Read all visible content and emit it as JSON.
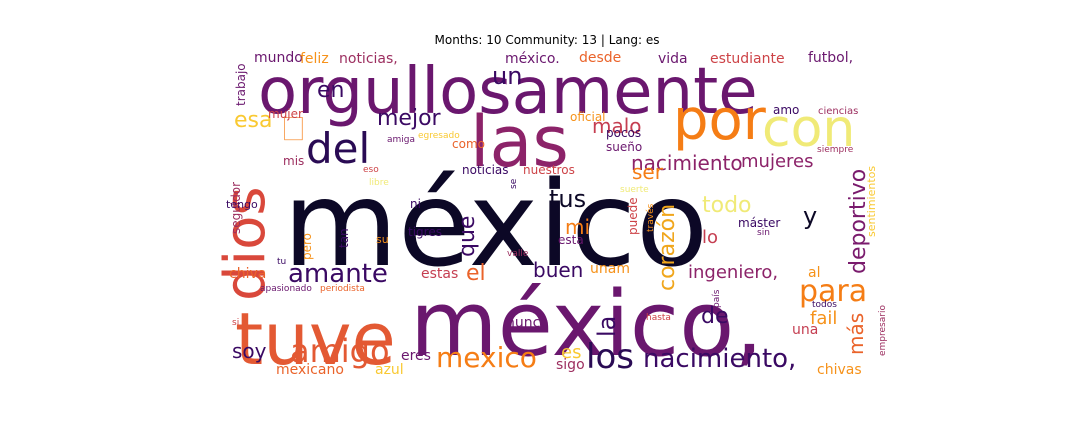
{
  "title": "Months: 10 Community: 13 | Lang: es",
  "colormap": [
    "#0c0826",
    "#3a0963",
    "#6a176e",
    "#9c2e5f",
    "#cd4347",
    "#ea632a",
    "#f6921a",
    "#f9c932",
    "#f0ea77"
  ],
  "words": [
    {
      "text": "méxico",
      "color": "#0c0826"
    },
    {
      "text": "orgullosamente",
      "color": "#6a176e"
    },
    {
      "text": "méxico,",
      "color": "#6a176e"
    },
    {
      "text": "tuve",
      "color": "#e35933"
    },
    {
      "text": "las",
      "color": "#8c2369"
    },
    {
      "text": "por",
      "color": "#f57d15"
    },
    {
      "text": "con",
      "color": "#f0ea77"
    },
    {
      "text": "dios",
      "color": "#d9483b"
    },
    {
      "text": "del",
      "color": "#2a0b54"
    },
    {
      "text": "amigo",
      "color": "#e35933"
    },
    {
      "text": "los",
      "color": "#2a0b54"
    },
    {
      "text": "nacimiento,",
      "color": "#3a0963"
    },
    {
      "text": "mexico",
      "color": "#f57d15"
    },
    {
      "text": "para",
      "color": "#f57d15"
    },
    {
      "text": "amante",
      "color": "#3a0963"
    },
    {
      "text": "corazón",
      "color": "#f0a61c"
    },
    {
      "text": "deportivo",
      "color": "#7a1b6d"
    },
    {
      "text": "nacimiento",
      "color": "#8c2369"
    },
    {
      "text": "mejor",
      "color": "#3a0963"
    },
    {
      "text": "malo",
      "color": "#c53e51"
    },
    {
      "text": "un",
      "color": "#3a0963"
    },
    {
      "text": "en",
      "color": "#3a0963"
    },
    {
      "text": "esa",
      "color": "#f9c932"
    },
    {
      "text": "🗌",
      "color": "#f57d15"
    },
    {
      "text": "ser",
      "color": "#f57d15"
    },
    {
      "text": "mujeres",
      "color": "#8c2369"
    },
    {
      "text": "que",
      "color": "#3a0963"
    },
    {
      "text": "tus",
      "color": "#0c0826"
    },
    {
      "text": "mi",
      "color": "#f57d15"
    },
    {
      "text": "todo",
      "color": "#f0ea77"
    },
    {
      "text": "lo",
      "color": "#c53e51"
    },
    {
      "text": "y",
      "color": "#0c0826"
    },
    {
      "text": "el",
      "color": "#ea632a"
    },
    {
      "text": "buen",
      "color": "#3a0963"
    },
    {
      "text": "la",
      "color": "#3a0963"
    },
    {
      "text": "de",
      "color": "#3a0963"
    },
    {
      "text": "soy",
      "color": "#3a0963"
    },
    {
      "text": "es",
      "color": "#f9c932"
    },
    {
      "text": "más",
      "color": "#ea632a"
    },
    {
      "text": "fail",
      "color": "#f6921a"
    },
    {
      "text": "ingeniero,",
      "color": "#8c2369"
    },
    {
      "text": "chivas",
      "color": "#f6921a"
    },
    {
      "text": "chiva",
      "color": "#ea632a"
    },
    {
      "text": "estas",
      "color": "#c53e51"
    },
    {
      "text": "unam",
      "color": "#f6921a"
    },
    {
      "text": "al",
      "color": "#f6921a"
    },
    {
      "text": "nunca",
      "color": "#6a176e"
    },
    {
      "text": "eres",
      "color": "#6a176e"
    },
    {
      "text": "mexicano",
      "color": "#ea632a"
    },
    {
      "text": "azul",
      "color": "#f9c932"
    },
    {
      "text": "sigo",
      "color": "#9c2e5f"
    },
    {
      "text": "una",
      "color": "#c53e51"
    },
    {
      "text": "mundo",
      "color": "#6a176e"
    },
    {
      "text": "feliz",
      "color": "#f6921a"
    },
    {
      "text": "noticias,",
      "color": "#9c2e5f"
    },
    {
      "text": "méxico.",
      "color": "#6a176e"
    },
    {
      "text": "desde",
      "color": "#ea632a"
    },
    {
      "text": "vida",
      "color": "#6a176e"
    },
    {
      "text": "estudiante",
      "color": "#cd4347"
    },
    {
      "text": "futbol,",
      "color": "#6a176e"
    },
    {
      "text": "trabajo",
      "color": "#6a176e"
    },
    {
      "text": "mujer",
      "color": "#cd4347"
    },
    {
      "text": "oficial",
      "color": "#f6921a"
    },
    {
      "text": "pocos",
      "color": "#3a0963"
    },
    {
      "text": "amo",
      "color": "#3a0963"
    },
    {
      "text": "ciencias",
      "color": "#9c2e5f"
    },
    {
      "text": "sentimientos",
      "color": "#f9c932"
    },
    {
      "text": "seguidor",
      "color": "#9c2e5f"
    },
    {
      "text": "mis",
      "color": "#9c2e5f"
    },
    {
      "text": "amiga",
      "color": "#6a176e"
    },
    {
      "text": "egresado",
      "color": "#f9c932"
    },
    {
      "text": "como",
      "color": "#ea632a"
    },
    {
      "text": "sueño",
      "color": "#6a176e"
    },
    {
      "text": "siempre",
      "color": "#9c2e5f"
    },
    {
      "text": "noticias",
      "color": "#3a0963"
    },
    {
      "text": "nuestros",
      "color": "#cd4347"
    },
    {
      "text": "eso",
      "color": "#cd4347"
    },
    {
      "text": "libre",
      "color": "#f0ea77"
    },
    {
      "text": "se",
      "color": "#3a0963"
    },
    {
      "text": "suerte",
      "color": "#f0ea77"
    },
    {
      "text": "tengo",
      "color": "#3a0963"
    },
    {
      "text": "ni",
      "color": "#3a0963"
    },
    {
      "text": "puede",
      "color": "#cd4347"
    },
    {
      "text": "través",
      "color": "#f6921a"
    },
    {
      "text": "máster",
      "color": "#3a0963"
    },
    {
      "text": "sin",
      "color": "#6a176e"
    },
    {
      "text": "tan",
      "color": "#3a0963"
    },
    {
      "text": "pero",
      "color": "#f6921a"
    },
    {
      "text": "su",
      "color": "#f6921a"
    },
    {
      "text": "tigres",
      "color": "#3a0963"
    },
    {
      "text": "esta",
      "color": "#6a176e"
    },
    {
      "text": "tu",
      "color": "#3a0963"
    },
    {
      "text": "valle",
      "color": "#9c2e5f"
    },
    {
      "text": "apasionado",
      "color": "#6a176e"
    },
    {
      "text": "periodista",
      "color": "#ea632a"
    },
    {
      "text": "país",
      "color": "#6a176e"
    },
    {
      "text": "todos",
      "color": "#3a0963"
    },
    {
      "text": "si",
      "color": "#cd4347"
    },
    {
      "text": "hasta",
      "color": "#cd4347"
    },
    {
      "text": "empresario",
      "color": "#9c2e5f"
    }
  ]
}
